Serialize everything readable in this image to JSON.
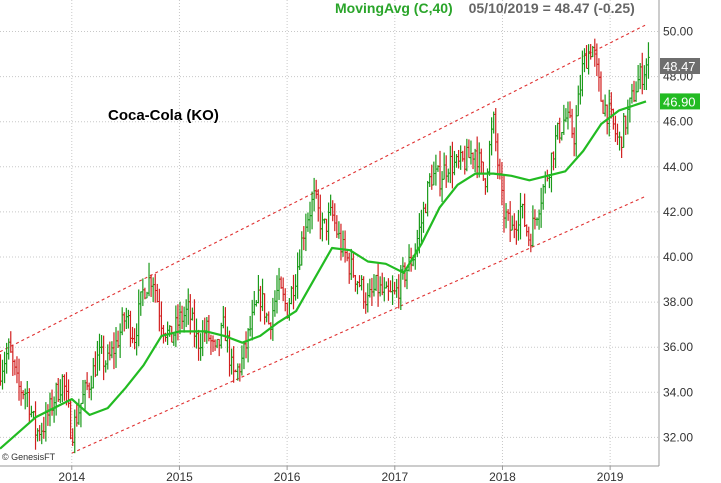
{
  "chart_data": {
    "type": "bar",
    "title": "Coca-Cola (KO)",
    "indicator": {
      "label": "MovingAvg (C,40)",
      "readout": "05/10/2019 = 48.47 (-0.25)"
    },
    "credit": "© GenesisFT",
    "y_ticks": [
      "50.00",
      "48.00",
      "46.00",
      "44.00",
      "42.00",
      "40.00",
      "38.00",
      "36.00",
      "34.00",
      "32.00"
    ],
    "x_ticks": [
      "2014",
      "2015",
      "2016",
      "2017",
      "2018",
      "2019"
    ],
    "ylim": [
      31,
      51
    ],
    "xlim": [
      "2013-05",
      "2019-06"
    ],
    "grid": true,
    "last_price": "48.47",
    "last_ma": "46.90",
    "colors": {
      "up": "#1a9a1a",
      "down": "#d22020",
      "moving_average": "#22bb22",
      "channel": "#e03030",
      "grid": "#c8c8c8",
      "price_badge": "#6e6e6e",
      "ma_badge": "#22bb22",
      "ma_label": "#2aa52a",
      "readout": "#666666"
    },
    "price_path": [
      [
        "2013-05",
        35.0
      ],
      [
        "2013-06",
        35.9
      ],
      [
        "2013-07",
        34.2
      ],
      [
        "2013-08",
        34.0
      ],
      [
        "2013-09",
        32.2
      ],
      [
        "2013-10",
        32.6
      ],
      [
        "2013-11",
        33.7
      ],
      [
        "2013-12",
        34.6
      ],
      [
        "2014-01",
        32.2
      ],
      [
        "2014-02",
        33.5
      ],
      [
        "2014-03",
        34.5
      ],
      [
        "2014-04",
        35.6
      ],
      [
        "2014-05",
        35.3
      ],
      [
        "2014-06",
        36.2
      ],
      [
        "2014-07",
        37.4
      ],
      [
        "2014-08",
        36.5
      ],
      [
        "2014-09",
        38.6
      ],
      [
        "2014-10",
        39.2
      ],
      [
        "2014-11",
        37.2
      ],
      [
        "2014-12",
        36.3
      ],
      [
        "2015-01",
        37.2
      ],
      [
        "2015-02",
        37.6
      ],
      [
        "2015-03",
        36.2
      ],
      [
        "2015-04",
        36.8
      ],
      [
        "2015-05",
        35.6
      ],
      [
        "2015-06",
        37.0
      ],
      [
        "2015-07",
        34.6
      ],
      [
        "2015-08",
        35.4
      ],
      [
        "2015-09",
        37.0
      ],
      [
        "2015-10",
        38.3
      ],
      [
        "2015-11",
        37.0
      ],
      [
        "2015-12",
        38.6
      ],
      [
        "2016-01",
        37.7
      ],
      [
        "2016-02",
        39.3
      ],
      [
        "2016-03",
        41.5
      ],
      [
        "2016-04",
        42.6
      ],
      [
        "2016-05",
        41.2
      ],
      [
        "2016-06",
        41.9
      ],
      [
        "2016-07",
        40.5
      ],
      [
        "2016-08",
        39.6
      ],
      [
        "2016-09",
        38.9
      ],
      [
        "2016-10",
        38.0
      ],
      [
        "2016-11",
        38.7
      ],
      [
        "2016-12",
        38.2
      ],
      [
        "2017-01",
        38.3
      ],
      [
        "2017-02",
        39.2
      ],
      [
        "2017-03",
        40.0
      ],
      [
        "2017-04",
        41.6
      ],
      [
        "2017-05",
        43.6
      ],
      [
        "2017-06",
        43.5
      ],
      [
        "2017-07",
        44.2
      ],
      [
        "2017-08",
        44.0
      ],
      [
        "2017-09",
        44.3
      ],
      [
        "2017-10",
        44.8
      ],
      [
        "2017-11",
        43.3
      ],
      [
        "2017-12",
        46.0
      ],
      [
        "2018-01",
        42.2
      ],
      [
        "2018-02",
        41.1
      ],
      [
        "2018-03",
        42.2
      ],
      [
        "2018-04",
        40.8
      ],
      [
        "2018-05",
        42.3
      ],
      [
        "2018-06",
        43.7
      ],
      [
        "2018-07",
        45.3
      ],
      [
        "2018-08",
        46.2
      ],
      [
        "2018-09",
        45.4
      ],
      [
        "2018-10",
        48.6
      ],
      [
        "2018-11",
        49.4
      ],
      [
        "2018-12",
        47.0
      ],
      [
        "2019-01",
        46.2
      ],
      [
        "2019-02",
        45.0
      ],
      [
        "2019-03",
        46.4
      ],
      [
        "2019-04",
        47.7
      ],
      [
        "2019-05",
        48.5
      ]
    ],
    "moving_average": [
      [
        "2013-05",
        31.5
      ],
      [
        "2013-09",
        32.9
      ],
      [
        "2013-11",
        33.3
      ],
      [
        "2014-01",
        33.7
      ],
      [
        "2014-03",
        33.0
      ],
      [
        "2014-05",
        33.3
      ],
      [
        "2014-07",
        34.2
      ],
      [
        "2014-09",
        35.2
      ],
      [
        "2014-11",
        36.5
      ],
      [
        "2015-01",
        36.7
      ],
      [
        "2015-04",
        36.7
      ],
      [
        "2015-06",
        36.5
      ],
      [
        "2015-08",
        36.2
      ],
      [
        "2015-10",
        36.5
      ],
      [
        "2015-12",
        37.1
      ],
      [
        "2016-02",
        37.6
      ],
      [
        "2016-04",
        39.0
      ],
      [
        "2016-06",
        40.4
      ],
      [
        "2016-08",
        40.3
      ],
      [
        "2016-10",
        39.8
      ],
      [
        "2016-12",
        39.7
      ],
      [
        "2017-02",
        39.3
      ],
      [
        "2017-04",
        40.6
      ],
      [
        "2017-06",
        42.2
      ],
      [
        "2017-08",
        43.2
      ],
      [
        "2017-10",
        43.7
      ],
      [
        "2017-12",
        43.7
      ],
      [
        "2018-02",
        43.6
      ],
      [
        "2018-04",
        43.4
      ],
      [
        "2018-06",
        43.6
      ],
      [
        "2018-08",
        43.8
      ],
      [
        "2018-10",
        44.7
      ],
      [
        "2018-12",
        45.9
      ],
      [
        "2019-02",
        46.5
      ],
      [
        "2019-05",
        46.9
      ]
    ],
    "channel": {
      "upper": [
        [
          "2013-05",
          35.8
        ],
        [
          "2019-05",
          50.3
        ]
      ],
      "lower": [
        [
          "2014-01",
          31.3
        ],
        [
          "2019-05",
          42.7
        ]
      ]
    }
  }
}
